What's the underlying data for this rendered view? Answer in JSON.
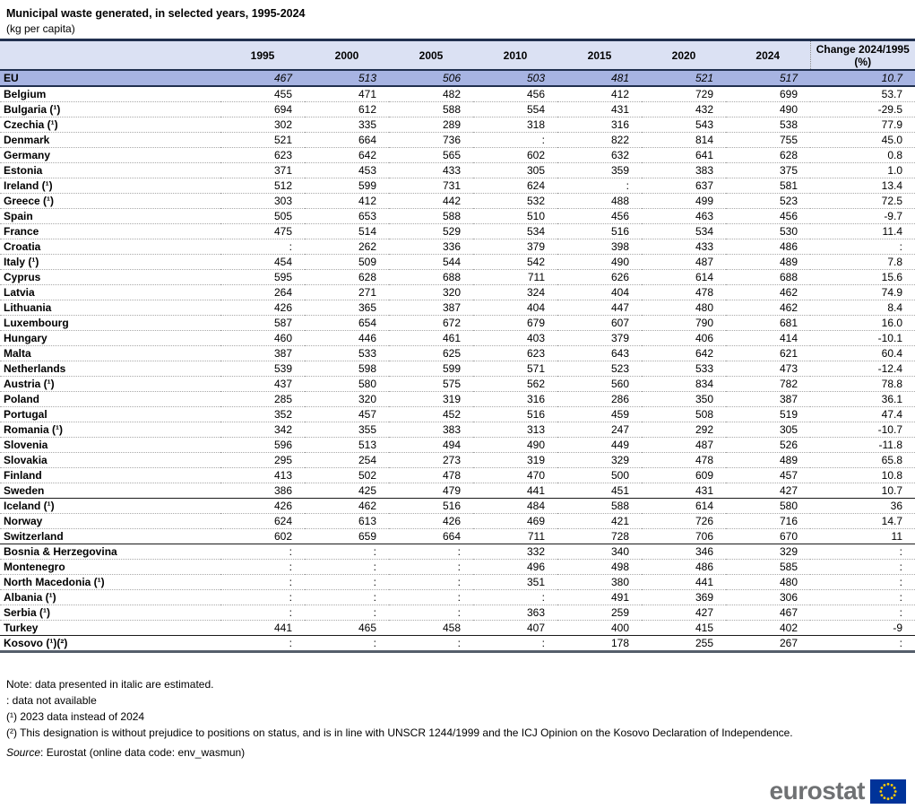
{
  "title": "Municipal waste generated, in selected years, 1995-2024",
  "subtitle": "(kg per capita)",
  "chart_data": {
    "type": "table",
    "title": "Municipal waste generated, in selected years, 1995-2024",
    "unit": "kg per capita",
    "years": [
      "1995",
      "2000",
      "2005",
      "2010",
      "2015",
      "2020",
      "2024"
    ],
    "change_header": [
      "Change 2024/1995",
      "(%)"
    ],
    "rows": [
      {
        "name": "EU",
        "values": [
          "467",
          "513",
          "506",
          "503",
          "481",
          "521",
          "517",
          "10.7"
        ],
        "estimated": true,
        "highlight": true
      },
      {
        "name": "Belgium",
        "values": [
          "455",
          "471",
          "482",
          "456",
          "412",
          "729",
          "699",
          "53.7"
        ]
      },
      {
        "name": "Bulgaria (¹)",
        "values": [
          "694",
          "612",
          "588",
          "554",
          "431",
          "432",
          "490",
          "-29.5"
        ]
      },
      {
        "name": "Czechia (¹)",
        "values": [
          "302",
          "335",
          "289",
          "318",
          "316",
          "543",
          "538",
          "77.9"
        ]
      },
      {
        "name": "Denmark",
        "values": [
          "521",
          "664",
          "736",
          ":",
          "822",
          "814",
          "755",
          "45.0"
        ]
      },
      {
        "name": "Germany",
        "values": [
          "623",
          "642",
          "565",
          "602",
          "632",
          "641",
          "628",
          "0.8"
        ]
      },
      {
        "name": "Estonia",
        "values": [
          "371",
          "453",
          "433",
          "305",
          "359",
          "383",
          "375",
          "1.0"
        ]
      },
      {
        "name": "Ireland (¹)",
        "values": [
          "512",
          "599",
          "731",
          "624",
          ":",
          "637",
          "581",
          "13.4"
        ]
      },
      {
        "name": "Greece (¹)",
        "values": [
          "303",
          "412",
          "442",
          "532",
          "488",
          "499",
          "523",
          "72.5"
        ]
      },
      {
        "name": "Spain",
        "values": [
          "505",
          "653",
          "588",
          "510",
          "456",
          "463",
          "456",
          "-9.7"
        ]
      },
      {
        "name": "France",
        "values": [
          "475",
          "514",
          "529",
          "534",
          "516",
          "534",
          "530",
          "11.4"
        ]
      },
      {
        "name": "Croatia",
        "values": [
          ":",
          "262",
          "336",
          "379",
          "398",
          "433",
          "486",
          ":"
        ]
      },
      {
        "name": "Italy (¹)",
        "values": [
          "454",
          "509",
          "544",
          "542",
          "490",
          "487",
          "489",
          "7.8"
        ]
      },
      {
        "name": "Cyprus",
        "values": [
          "595",
          "628",
          "688",
          "711",
          "626",
          "614",
          "688",
          "15.6"
        ]
      },
      {
        "name": "Latvia",
        "values": [
          "264",
          "271",
          "320",
          "324",
          "404",
          "478",
          "462",
          "74.9"
        ]
      },
      {
        "name": "Lithuania",
        "values": [
          "426",
          "365",
          "387",
          "404",
          "447",
          "480",
          "462",
          "8.4"
        ]
      },
      {
        "name": "Luxembourg",
        "values": [
          "587",
          "654",
          "672",
          "679",
          "607",
          "790",
          "681",
          "16.0"
        ]
      },
      {
        "name": "Hungary",
        "values": [
          "460",
          "446",
          "461",
          "403",
          "379",
          "406",
          "414",
          "-10.1"
        ]
      },
      {
        "name": "Malta",
        "values": [
          "387",
          "533",
          "625",
          "623",
          "643",
          "642",
          "621",
          "60.4"
        ]
      },
      {
        "name": "Netherlands",
        "values": [
          "539",
          "598",
          "599",
          "571",
          "523",
          "533",
          "473",
          "-12.4"
        ]
      },
      {
        "name": "Austria (¹)",
        "values": [
          "437",
          "580",
          "575",
          "562",
          "560",
          "834",
          "782",
          "78.8"
        ]
      },
      {
        "name": "Poland",
        "values": [
          "285",
          "320",
          "319",
          "316",
          "286",
          "350",
          "387",
          "36.1"
        ]
      },
      {
        "name": "Portugal",
        "values": [
          "352",
          "457",
          "452",
          "516",
          "459",
          "508",
          "519",
          "47.4"
        ]
      },
      {
        "name": "Romania (¹)",
        "values": [
          "342",
          "355",
          "383",
          "313",
          "247",
          "292",
          "305",
          "-10.7"
        ]
      },
      {
        "name": "Slovenia",
        "values": [
          "596",
          "513",
          "494",
          "490",
          "449",
          "487",
          "526",
          "-11.8"
        ]
      },
      {
        "name": "Slovakia",
        "values": [
          "295",
          "254",
          "273",
          "319",
          "329",
          "478",
          "489",
          "65.8"
        ]
      },
      {
        "name": "Finland",
        "values": [
          "413",
          "502",
          "478",
          "470",
          "500",
          "609",
          "457",
          "10.8"
        ]
      },
      {
        "name": "Sweden",
        "values": [
          "386",
          "425",
          "479",
          "441",
          "451",
          "431",
          "427",
          "10.7"
        ],
        "separator": "solid"
      },
      {
        "name": "Iceland (¹)",
        "values": [
          "426",
          "462",
          "516",
          "484",
          "588",
          "614",
          "580",
          "36"
        ]
      },
      {
        "name": "Norway",
        "values": [
          "624",
          "613",
          "426",
          "469",
          "421",
          "726",
          "716",
          "14.7"
        ]
      },
      {
        "name": "Switzerland",
        "values": [
          "602",
          "659",
          "664",
          "711",
          "728",
          "706",
          "670",
          "11"
        ],
        "separator": "solid"
      },
      {
        "name": "Bosnia & Herzegovina",
        "values": [
          ":",
          ":",
          ":",
          "332",
          "340",
          "346",
          "329",
          ":"
        ]
      },
      {
        "name": "Montenegro",
        "values": [
          ":",
          ":",
          ":",
          "496",
          "498",
          "486",
          "585",
          ":"
        ]
      },
      {
        "name": "North Macedonia (¹)",
        "values": [
          ":",
          ":",
          ":",
          "351",
          "380",
          "441",
          "480",
          ":"
        ]
      },
      {
        "name": "Albania (¹)",
        "values": [
          ":",
          ":",
          ":",
          ":",
          "491",
          "369",
          "306",
          ":"
        ]
      },
      {
        "name": "Serbia (¹)",
        "values": [
          ":",
          ":",
          ":",
          "363",
          "259",
          "427",
          "467",
          ":"
        ]
      },
      {
        "name": "Turkey",
        "values": [
          "441",
          "465",
          "458",
          "407",
          "400",
          "415",
          "402",
          "-9"
        ],
        "separator": "solid"
      },
      {
        "name": "Kosovo (¹)(²)",
        "values": [
          ":",
          ":",
          ":",
          ":",
          "178",
          "255",
          "267",
          ":"
        ],
        "separator": "thick"
      }
    ]
  },
  "notes": [
    "Note: data presented in italic are estimated.",
    ": data not available",
    "(¹) 2023 data instead of 2024",
    "(²) This designation is without prejudice to positions on status, and is in line with UNSCR 1244/1999 and the ICJ Opinion on the Kosovo Declaration of Independence."
  ],
  "source": {
    "label": "Source",
    "text": ": Eurostat (online data code: env_wasmun)"
  },
  "logo": {
    "text": "eurostat",
    "flag_blue": "#003399",
    "star_yellow": "#ffcc00"
  }
}
